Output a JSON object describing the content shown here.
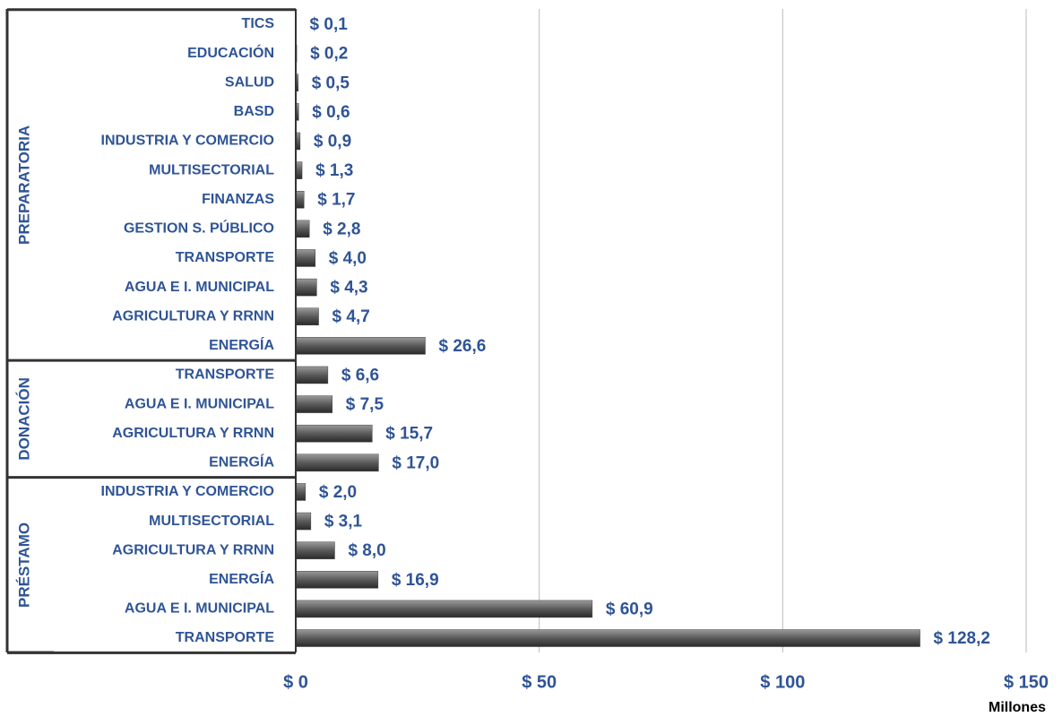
{
  "chart_data": {
    "type": "bar",
    "orientation": "horizontal",
    "color": "#5a5a5a",
    "label_color": "#2f5496",
    "groups": [
      {
        "name": "PREPARATORIA",
        "categories": [
          "TICS",
          "EDUCACIÓN",
          "SALUD",
          "BASD",
          "INDUSTRIA Y COMERCIO",
          "MULTISECTORIAL",
          "FINANZAS",
          "GESTION S. PÚBLICO",
          "TRANSPORTE",
          "AGUA E I. MUNICIPAL",
          "AGRICULTURA Y RRNN",
          "ENERGÍA"
        ],
        "values": [
          0.1,
          0.2,
          0.5,
          0.6,
          0.9,
          1.3,
          1.7,
          2.8,
          4.0,
          4.3,
          4.7,
          26.6
        ],
        "value_labels": [
          "$ 0,1",
          "$ 0,2",
          "$ 0,5",
          "$ 0,6",
          "$ 0,9",
          "$ 1,3",
          "$ 1,7",
          "$ 2,8",
          "$ 4,0",
          "$ 4,3",
          "$ 4,7",
          "$ 26,6"
        ]
      },
      {
        "name": "DONACIÓN",
        "categories": [
          "TRANSPORTE",
          "AGUA E I. MUNICIPAL",
          "AGRICULTURA Y RRNN",
          "ENERGÍA"
        ],
        "values": [
          6.6,
          7.5,
          15.7,
          17.0
        ],
        "value_labels": [
          "$ 6,6",
          "$ 7,5",
          "$ 15,7",
          "$ 17,0"
        ]
      },
      {
        "name": "PRÉSTAMO",
        "categories": [
          "INDUSTRIA Y COMERCIO",
          "MULTISECTORIAL",
          "AGRICULTURA Y RRNN",
          "ENERGÍA",
          "AGUA E I. MUNICIPAL",
          "TRANSPORTE"
        ],
        "values": [
          2.0,
          3.1,
          8.0,
          16.9,
          60.9,
          128.2
        ],
        "value_labels": [
          "$ 2,0",
          "$ 3,1",
          "$ 8,0",
          "$ 16,9",
          "$ 60,9",
          "$ 128,2"
        ]
      }
    ],
    "xlim": [
      0,
      150
    ],
    "xticks": [
      {
        "value": 0,
        "label": "$ 0"
      },
      {
        "value": 50,
        "label": "$ 50"
      },
      {
        "value": 100,
        "label": "$ 100"
      },
      {
        "value": 150,
        "label": "$ 150"
      }
    ],
    "x_label": "Millones",
    "grid": true
  }
}
